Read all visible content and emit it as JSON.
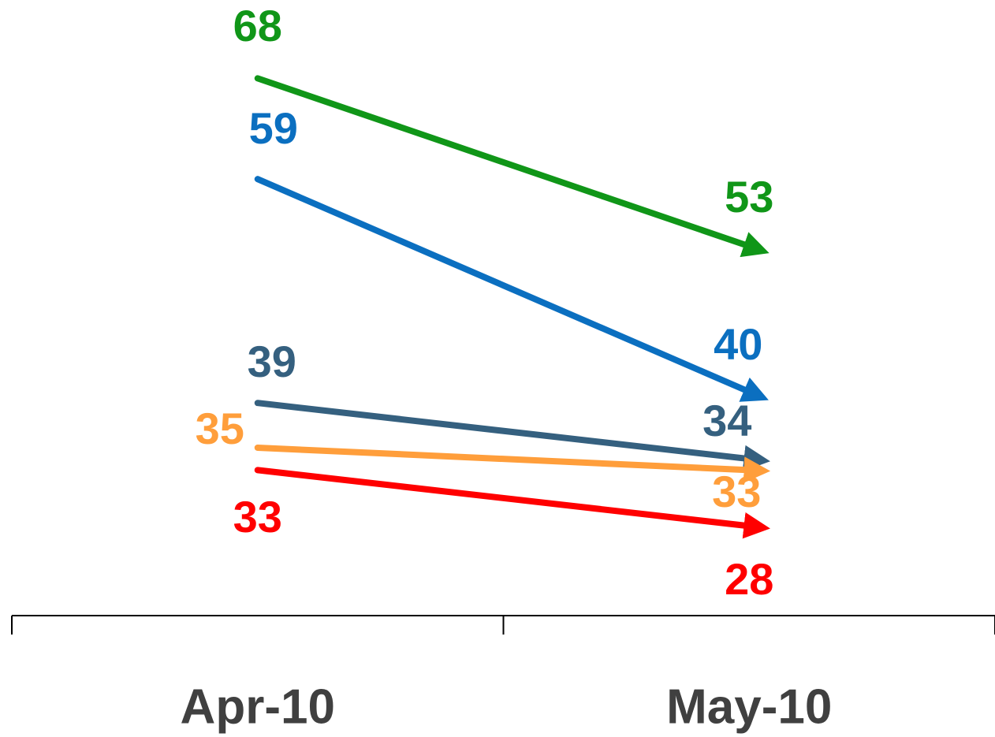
{
  "chart_data": {
    "type": "line",
    "categories": [
      "Apr-10",
      "May-10"
    ],
    "series": [
      {
        "color": "#109618",
        "values": [
          68,
          53
        ]
      },
      {
        "color": "#0b6fc0",
        "values": [
          59,
          40
        ]
      },
      {
        "color": "#35607f",
        "values": [
          39,
          34
        ]
      },
      {
        "color": "#ff9e3b",
        "values": [
          35,
          33
        ]
      },
      {
        "color": "#ff0000",
        "values": [
          33,
          28
        ]
      }
    ],
    "ylim": [
      20,
      75
    ],
    "arrows": true
  }
}
